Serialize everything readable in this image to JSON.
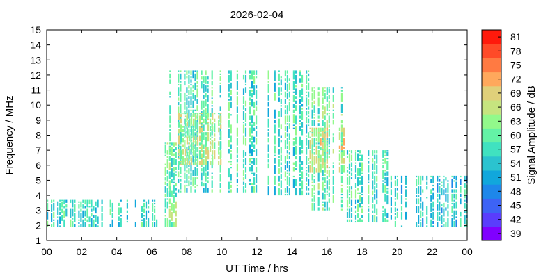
{
  "chart_data": {
    "type": "heatmap",
    "title": "2026-02-04",
    "xlabel": "UT Time / hrs",
    "ylabel": "Frequency / MHz",
    "colorbar_label": "Signal Amplitude / dB",
    "xlim": [
      0,
      24
    ],
    "ylim": [
      1,
      15
    ],
    "xticks": [
      "00",
      "02",
      "04",
      "06",
      "08",
      "10",
      "12",
      "14",
      "16",
      "18",
      "20",
      "22",
      "00"
    ],
    "yticks": [
      "1",
      "2",
      "3",
      "4",
      "5",
      "6",
      "7",
      "8",
      "9",
      "10",
      "11",
      "12",
      "13",
      "14",
      "15"
    ],
    "colorbar": {
      "levels": [
        39,
        42,
        45,
        48,
        51,
        54,
        57,
        60,
        63,
        66,
        69,
        72,
        75,
        78,
        81
      ],
      "colors": [
        "#8000ff",
        "#5a3dfc",
        "#3d63f5",
        "#1e87ea",
        "#11a7dc",
        "#2bc3cf",
        "#40e2c0",
        "#64f2a6",
        "#92f98b",
        "#c6e47f",
        "#e0d07a",
        "#ffa85c",
        "#ff7a42",
        "#ff4a28",
        "#ff1a0c"
      ]
    },
    "grid": false,
    "bands": [
      {
        "t0": 0.0,
        "t1": 6.5,
        "f0": 1.9,
        "f1": 3.7,
        "level": 56
      },
      {
        "t0": 6.5,
        "t1": 7.5,
        "f0": 1.9,
        "f1": 7.5,
        "level": 60
      },
      {
        "t0": 7.0,
        "t1": 12.0,
        "f0": 4.2,
        "f1": 12.3,
        "level": 58
      },
      {
        "t0": 7.5,
        "t1": 10.0,
        "f0": 6.0,
        "f1": 9.5,
        "level": 64
      },
      {
        "t0": 12.5,
        "t1": 15.0,
        "f0": 4.0,
        "f1": 12.3,
        "level": 57
      },
      {
        "t0": 15.0,
        "t1": 17.0,
        "f0": 3.0,
        "f1": 11.2,
        "level": 60
      },
      {
        "t0": 15.0,
        "t1": 17.0,
        "f0": 5.5,
        "f1": 8.5,
        "level": 66
      },
      {
        "t0": 17.0,
        "t1": 19.5,
        "f0": 2.2,
        "f1": 7.0,
        "level": 58
      },
      {
        "t0": 19.5,
        "t1": 24.0,
        "f0": 1.9,
        "f1": 5.3,
        "level": 55
      }
    ]
  }
}
